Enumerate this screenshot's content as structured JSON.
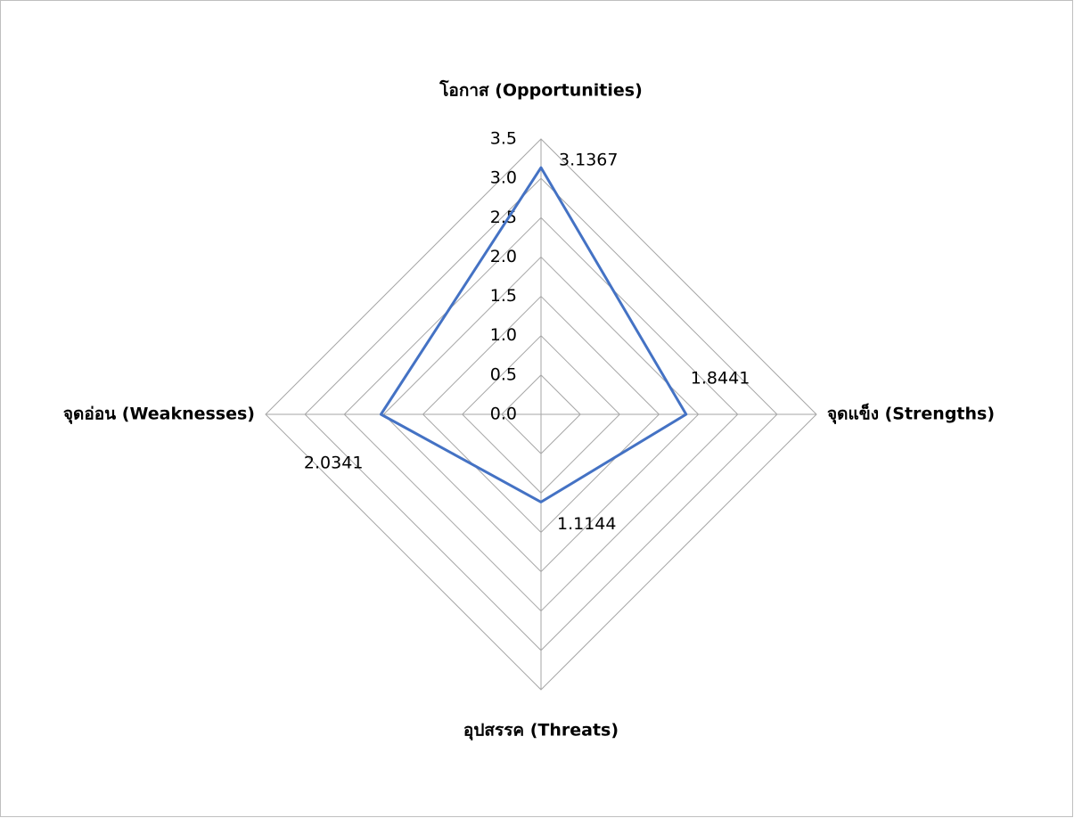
{
  "chart_data": {
    "type": "radar",
    "categories": [
      "โอกาส (Opportunities)",
      "จุดแข็ง (Strengths)",
      "อุปสรรค (Threats)",
      "จุดอ่อน (Weaknesses)"
    ],
    "values": [
      3.1367,
      1.8441,
      1.1144,
      2.0341
    ],
    "color": "#4472c4",
    "ylim": [
      0,
      3.5
    ],
    "yticks": [
      {
        "value": 0,
        "label": "0.0"
      },
      0.5,
      {
        "value": 1,
        "label": "1.0"
      },
      1.5,
      {
        "value": 2,
        "label": "2.0"
      },
      2.5,
      {
        "value": 3,
        "label": "3.0"
      },
      3.5
    ],
    "grid": true
  }
}
